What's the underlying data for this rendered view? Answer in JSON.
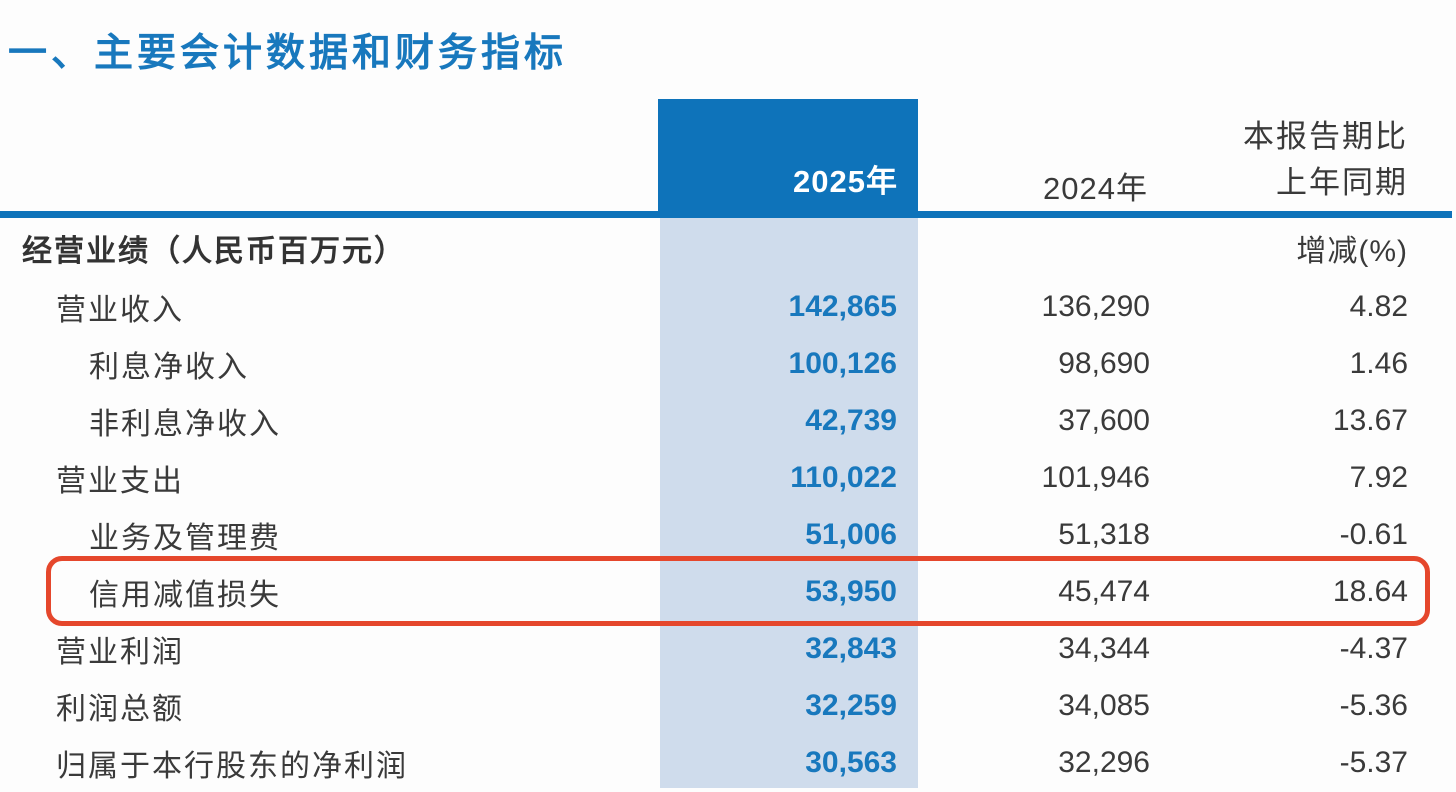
{
  "title": "一、主要会计数据和财务指标",
  "table": {
    "columns": {
      "col_2025": "2025年",
      "col_2024": "2024年",
      "col_change_line1": "本报告期比",
      "col_change_line2": "上年同期"
    },
    "section": {
      "label": "经营业绩（人民币百万元）",
      "change_unit": "增减(%)"
    },
    "rows": [
      {
        "label": "营业收入",
        "indent": 1,
        "v2025": "142,865",
        "v2024": "136,290",
        "change": "4.82",
        "highlighted": false
      },
      {
        "label": "利息净收入",
        "indent": 2,
        "v2025": "100,126",
        "v2024": "98,690",
        "change": "1.46",
        "highlighted": false
      },
      {
        "label": "非利息净收入",
        "indent": 2,
        "v2025": "42,739",
        "v2024": "37,600",
        "change": "13.67",
        "highlighted": false
      },
      {
        "label": "营业支出",
        "indent": 1,
        "v2025": "110,022",
        "v2024": "101,946",
        "change": "7.92",
        "highlighted": false
      },
      {
        "label": "业务及管理费",
        "indent": 2,
        "v2025": "51,006",
        "v2024": "51,318",
        "change": "-0.61",
        "highlighted": false
      },
      {
        "label": "信用减值损失",
        "indent": 2,
        "v2025": "53,950",
        "v2024": "45,474",
        "change": "18.64",
        "highlighted": true
      },
      {
        "label": "营业利润",
        "indent": 1,
        "v2025": "32,843",
        "v2024": "34,344",
        "change": "-4.37",
        "highlighted": false
      },
      {
        "label": "利润总额",
        "indent": 1,
        "v2025": "32,259",
        "v2024": "34,085",
        "change": "-5.36",
        "highlighted": false
      },
      {
        "label": "归属于本行股东的净利润",
        "indent": 1,
        "v2025": "30,563",
        "v2024": "32,296",
        "change": "-5.37",
        "highlighted": false
      }
    ]
  },
  "colors": {
    "header_blue": "#0e73ba",
    "light_blue_column": "#cfdcec",
    "accent_blue_text": "#1878bd",
    "body_text": "#3a3a3a",
    "highlight_red": "#e5472c"
  }
}
